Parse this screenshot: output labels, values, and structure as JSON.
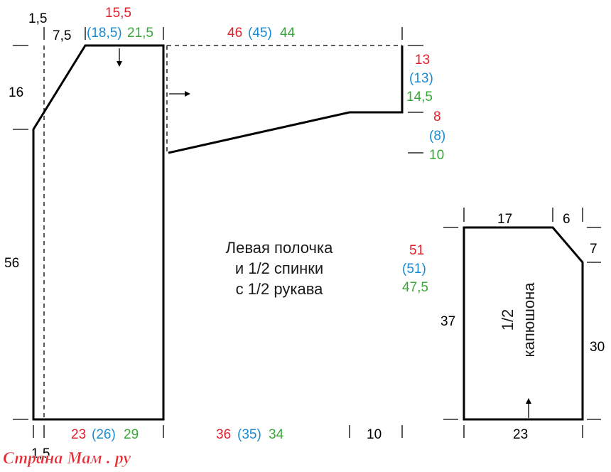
{
  "colors": {
    "line": "#000000",
    "red": "#e21f2b",
    "blue": "#1a8bd0",
    "green": "#38a839",
    "watermark": "#e8262e"
  },
  "main_piece": {
    "title_lines": [
      "Левая полочка",
      "и 1/2 спинки",
      "с 1/2 рукава"
    ],
    "dims": {
      "left_margin_top": "1,5",
      "neck_width": "7,5",
      "shoulder_red": "15,5",
      "shoulder_blue": "(18,5)",
      "shoulder_green": "21,5",
      "sleeve_len_red": "46",
      "sleeve_len_blue": "(45)",
      "sleeve_len_green": "44",
      "neck_depth": "16",
      "side_height": "56",
      "cuff_red": "13",
      "cuff_blue": "(13)",
      "cuff_green": "14,5",
      "sleeve_drop_red": "8",
      "sleeve_drop_blue": "(8)",
      "sleeve_drop_green": "10",
      "total_height_red": "51",
      "total_height_blue": "(51)",
      "total_height_green": "47,5",
      "bottom_width_red": "23",
      "bottom_width_blue": "(26)",
      "bottom_width_green": "29",
      "bottom_sleeve_red": "36",
      "bottom_sleeve_blue": "(35)",
      "bottom_sleeve_green": "34",
      "bottom_right": "10",
      "left_margin_bottom": "1,5"
    }
  },
  "hood": {
    "title_lines": [
      "1/2",
      "капюшона"
    ],
    "dims": {
      "top_width": "17",
      "top_corner": "6",
      "corner_drop": "7",
      "left_height": "37",
      "right_height": "30",
      "bottom_width": "23"
    }
  },
  "watermark": "Страна Мам . ру"
}
